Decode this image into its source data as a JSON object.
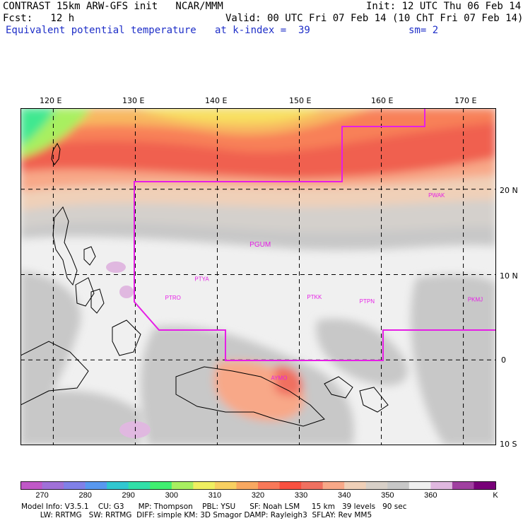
{
  "header": {
    "title": "CONTRAST 15km ARW-GFS init   NCAR/MMM",
    "init": "Init: 12 UTC Thu 06 Feb 14",
    "fcst": "Fcst:   12 h",
    "valid": "Valid: 00 UTC Fri 07 Feb 14 (10 ChT Fri 07 Feb 14)",
    "field": "Equivalent potential temperature",
    "level": "at k-index =  39",
    "smooth": "sm= 2"
  },
  "map": {
    "lon_labels": [
      "120 E",
      "130 E",
      "140 E",
      "150 E",
      "160 E",
      "170 E"
    ],
    "lat_labels": [
      "20 N",
      "10 N",
      "0",
      "10 S"
    ],
    "grid_lons": [
      120,
      130,
      140,
      150,
      160,
      170
    ],
    "grid_lats": [
      20,
      10,
      0,
      -10
    ],
    "lon_range": [
      116,
      174
    ],
    "lat_range": [
      -10,
      29.5
    ],
    "line_color": "#e61ee6",
    "stations": [
      {
        "label": "PGUM",
        "lon": 144.8,
        "lat": 13.5
      },
      {
        "label": "PTYA",
        "lon": 138.1,
        "lat": 9.5
      },
      {
        "label": "PTRO",
        "lon": 134.5,
        "lat": 7.3
      },
      {
        "label": "PTKK",
        "lon": 151.8,
        "lat": 7.4
      },
      {
        "label": "PTPN",
        "lon": 158.2,
        "lat": 6.9
      },
      {
        "label": "PKMJ",
        "lon": 171.4,
        "lat": 7.1
      },
      {
        "label": "PWAK",
        "lon": 166.6,
        "lat": 19.3
      },
      {
        "label": "AYMO",
        "lon": 147.4,
        "lat": -2.1
      }
    ]
  },
  "colorbar": {
    "unit": "K",
    "tick_labels": [
      "270",
      "280",
      "290",
      "300",
      "310",
      "320",
      "330",
      "340",
      "350",
      "360"
    ],
    "colors": [
      "#c058c8",
      "#a070d8",
      "#8080e8",
      "#5898f0",
      "#30c8d0",
      "#30e0a8",
      "#40f070",
      "#a8f060",
      "#f0f060",
      "#f8d060",
      "#f8a860",
      "#f87858",
      "#f85040",
      "#f07060",
      "#f8a888",
      "#f0d0b8",
      "#d8d0c8",
      "#c8c8c8",
      "#f0f0f0",
      "#e0b8e0",
      "#a040a0",
      "#780078"
    ]
  },
  "footer": {
    "line1": "Model Info: V3.5.1    CU: G3      MP: Thompson    PBL: YSU      SF: Noah LSM     15 km   39 levels   90 sec",
    "line2": "        LW: RRTMG   SW: RRTMG  DIFF: simple KM: 3D Smagor DAMP: Rayleigh3  SFLAY: Rev MM5"
  }
}
